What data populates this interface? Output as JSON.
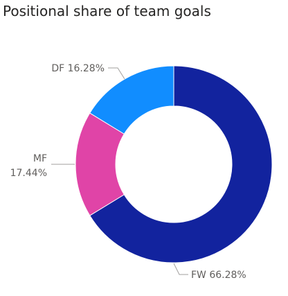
{
  "chart_data": {
    "type": "donut",
    "title": "Positional share of team goals",
    "slices": [
      {
        "name": "FW",
        "percent": 66.28,
        "label": "FW 66.28%",
        "color": "#12239e"
      },
      {
        "name": "MF",
        "percent": 17.44,
        "label_line1": "MF",
        "label_line2": "17.44%",
        "color": "#e044a7"
      },
      {
        "name": "DF",
        "percent": 16.28,
        "label": "DF 16.28%",
        "color": "#118dff"
      }
    ],
    "legend": "none"
  }
}
